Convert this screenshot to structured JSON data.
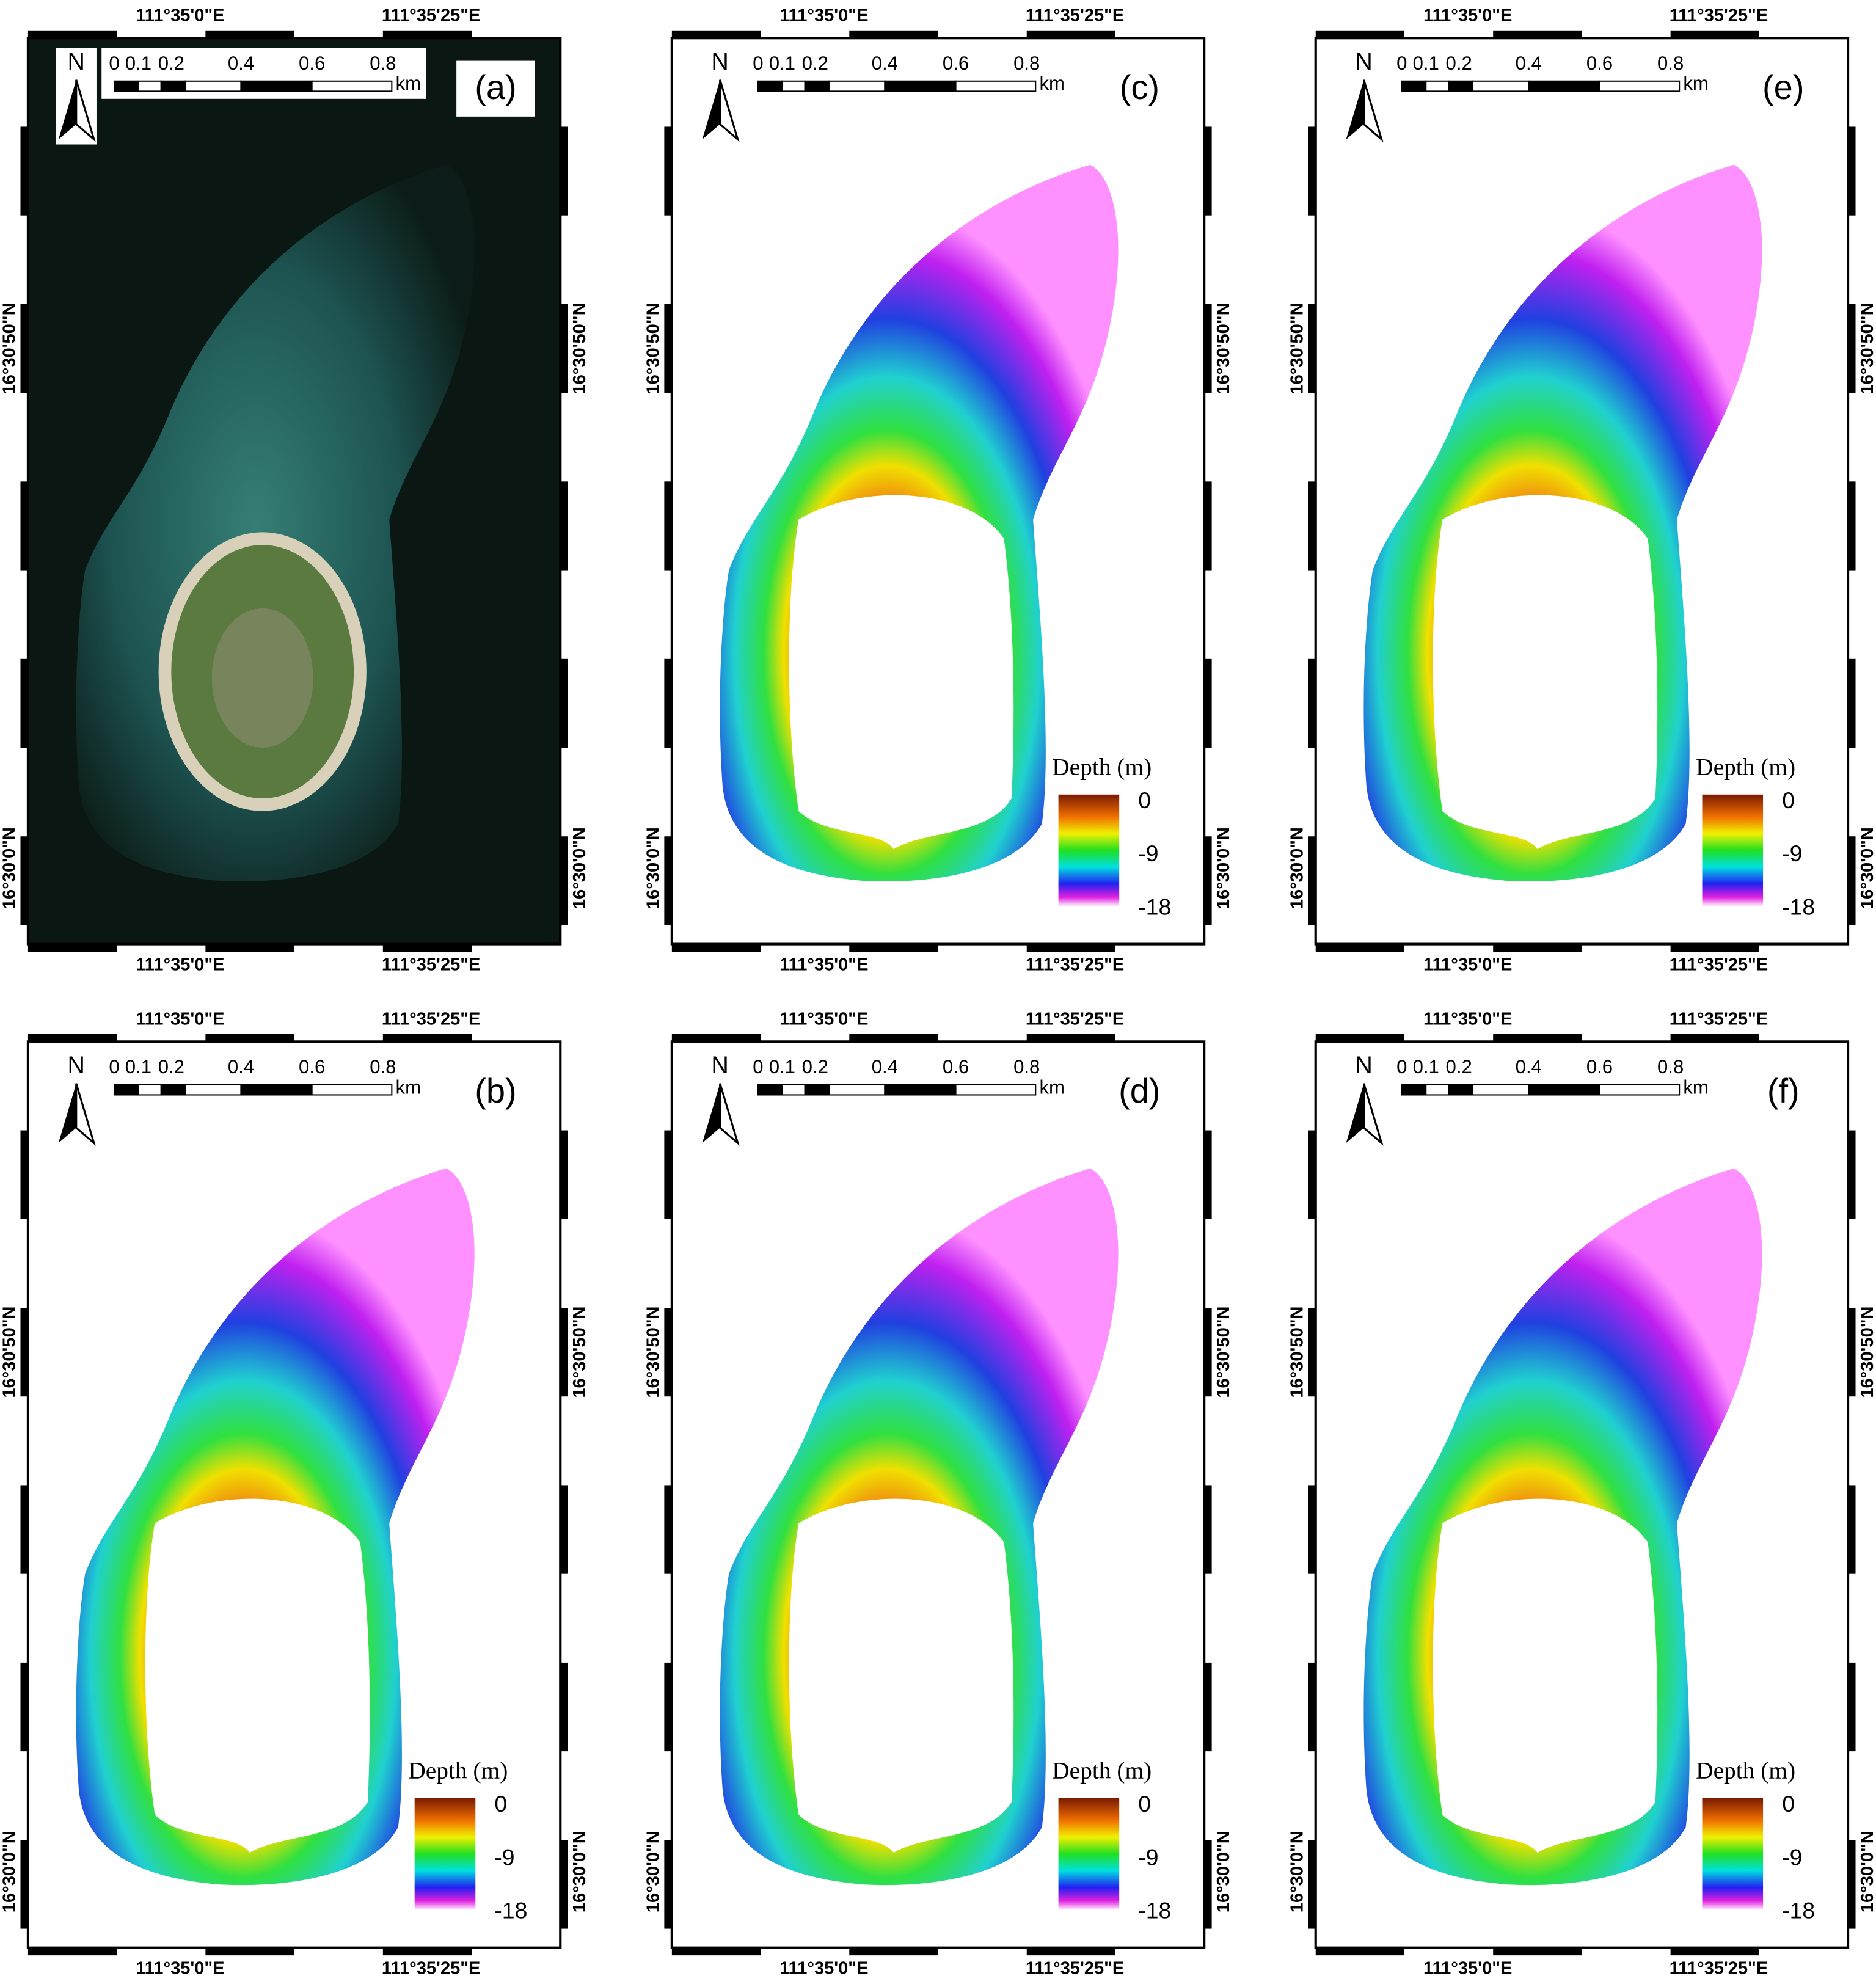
{
  "panels": [
    {
      "label": "(a)"
    },
    {
      "label": "(c)"
    },
    {
      "label": "(e)"
    },
    {
      "label": "(b)"
    },
    {
      "label": "(d)"
    },
    {
      "label": "(f)"
    }
  ],
  "north": "N",
  "scale_labels": [
    "0",
    "0.1",
    "0.2",
    "0.4",
    "0.6",
    "0.8"
  ],
  "scale_unit": "km",
  "lon_labels": [
    "111°35'0\"E",
    "111°35'25\"E"
  ],
  "lat_labels": [
    "16°30'50\"N",
    "16°30'0\"N"
  ],
  "legend": {
    "title": "Depth (m)",
    "ticks": [
      "0",
      "-9",
      "-18"
    ]
  }
}
